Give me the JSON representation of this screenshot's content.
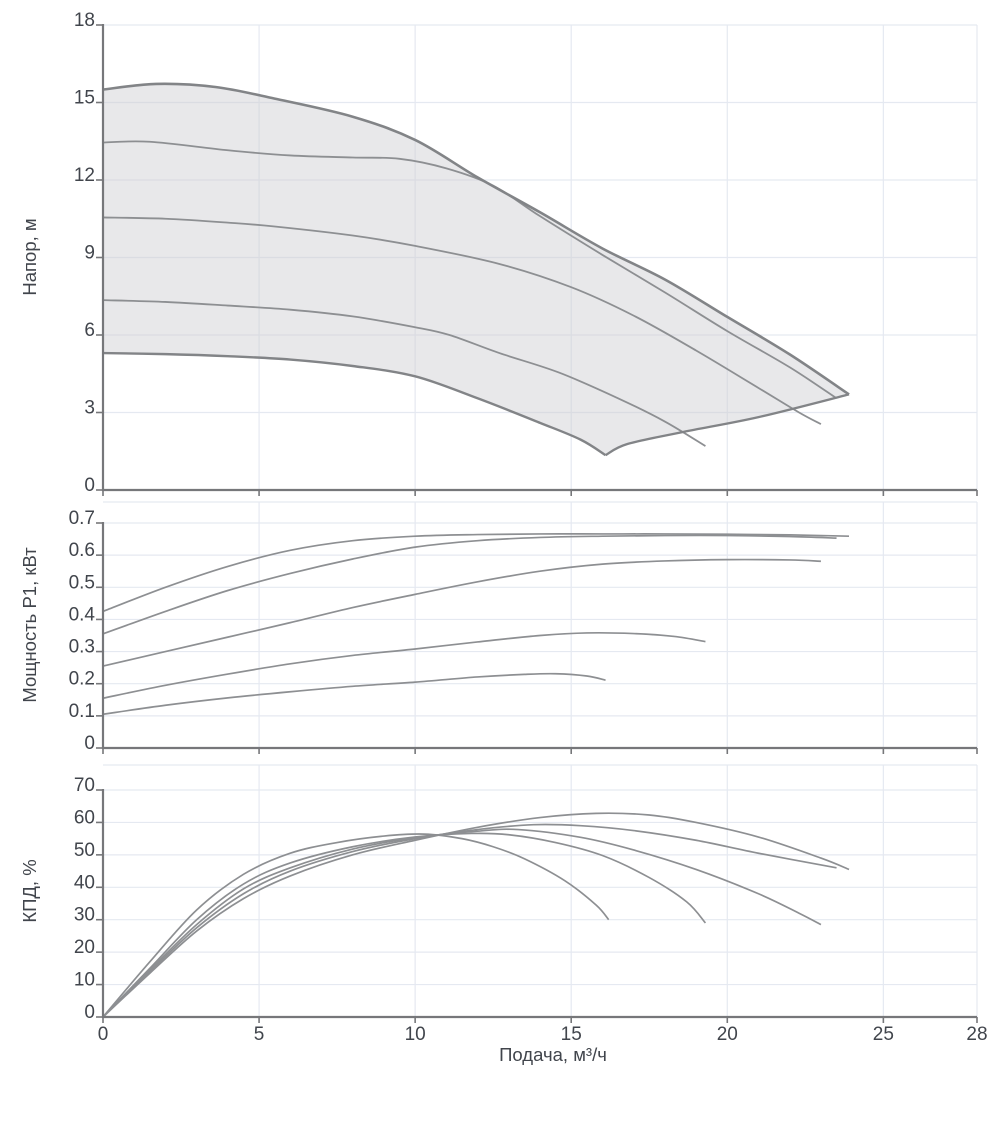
{
  "colors": {
    "background": "#ffffff",
    "grid": "#e5e9f1",
    "axis": "#76777a",
    "curve": "#8d8f92",
    "curve_bold": "#828487",
    "envelope_fill": "rgba(203,205,208,0.45)",
    "text": "#41454c"
  },
  "x_axis": {
    "label": "Подача, м³/ч",
    "min": 0,
    "max": 28,
    "ticks": [
      0,
      5,
      10,
      15,
      20,
      25,
      28
    ]
  },
  "chart_data": [
    {
      "type": "line",
      "panel": "head",
      "ylabel": "Напор, м",
      "ylim": [
        0,
        18
      ],
      "yticks": [
        0,
        3,
        6,
        9,
        12,
        15,
        18
      ],
      "grid": true,
      "envelope": {
        "right_edge": [
          [
            16.1,
            1.35
          ],
          [
            16.8,
            1.78
          ],
          [
            18.6,
            2.25
          ],
          [
            21,
            2.82
          ],
          [
            23.9,
            3.7
          ]
        ]
      },
      "series": [
        {
          "name": "speed-1",
          "points": [
            [
              0,
              15.5
            ],
            [
              1.7,
              15.72
            ],
            [
              3.6,
              15.6
            ],
            [
              5.5,
              15.15
            ],
            [
              8,
              14.45
            ],
            [
              10,
              13.55
            ],
            [
              12,
              12.1
            ],
            [
              14,
              10.75
            ],
            [
              16,
              9.35
            ],
            [
              18,
              8.15
            ],
            [
              20,
              6.7
            ],
            [
              22,
              5.25
            ],
            [
              23.9,
              3.7
            ]
          ]
        },
        {
          "name": "speed-2",
          "points": [
            [
              0,
              13.45
            ],
            [
              1.5,
              13.48
            ],
            [
              4,
              13.15
            ],
            [
              6,
              12.95
            ],
            [
              8,
              12.87
            ],
            [
              9.5,
              12.82
            ],
            [
              11,
              12.45
            ],
            [
              12.5,
              11.78
            ],
            [
              14,
              10.6
            ],
            [
              16,
              9.1
            ],
            [
              18,
              7.65
            ],
            [
              20,
              6.15
            ],
            [
              22,
              4.75
            ],
            [
              23.5,
              3.55
            ]
          ]
        },
        {
          "name": "speed-3",
          "points": [
            [
              0,
              10.55
            ],
            [
              2,
              10.5
            ],
            [
              4,
              10.35
            ],
            [
              5.5,
              10.2
            ],
            [
              8,
              9.85
            ],
            [
              10,
              9.45
            ],
            [
              12.7,
              8.75
            ],
            [
              15,
              7.85
            ],
            [
              17,
              6.75
            ],
            [
              19,
              5.4
            ],
            [
              21,
              3.95
            ],
            [
              22.3,
              3.0
            ],
            [
              23,
              2.55
            ]
          ]
        },
        {
          "name": "speed-4",
          "points": [
            [
              0,
              7.35
            ],
            [
              2,
              7.28
            ],
            [
              4,
              7.14
            ],
            [
              6,
              6.98
            ],
            [
              8,
              6.72
            ],
            [
              10,
              6.3
            ],
            [
              11.1,
              6.0
            ],
            [
              12.7,
              5.3
            ],
            [
              14.6,
              4.55
            ],
            [
              16.5,
              3.55
            ],
            [
              18,
              2.65
            ],
            [
              19.3,
              1.7
            ]
          ]
        },
        {
          "name": "speed-5",
          "points": [
            [
              0,
              5.3
            ],
            [
              2,
              5.26
            ],
            [
              4,
              5.18
            ],
            [
              6,
              5.05
            ],
            [
              8,
              4.8
            ],
            [
              10,
              4.4
            ],
            [
              12,
              3.55
            ],
            [
              14,
              2.6
            ],
            [
              15.3,
              1.95
            ],
            [
              16.1,
              1.35
            ]
          ]
        }
      ]
    },
    {
      "type": "line",
      "panel": "power",
      "ylabel": "Мощность P1, кВт",
      "ylim": [
        0,
        0.7
      ],
      "yticks": [
        0,
        0.1,
        0.2,
        0.3,
        0.4,
        0.5,
        0.6,
        0.7
      ],
      "grid": true,
      "series": [
        {
          "name": "speed-1",
          "points": [
            [
              0,
              0.425
            ],
            [
              2,
              0.5
            ],
            [
              4,
              0.565
            ],
            [
              6,
              0.615
            ],
            [
              8,
              0.645
            ],
            [
              10,
              0.659
            ],
            [
              12,
              0.664
            ],
            [
              14,
              0.666
            ],
            [
              16,
              0.666
            ],
            [
              18,
              0.666
            ],
            [
              20,
              0.665
            ],
            [
              22,
              0.663
            ],
            [
              23.9,
              0.659
            ]
          ]
        },
        {
          "name": "speed-2",
          "points": [
            [
              0,
              0.355
            ],
            [
              2,
              0.425
            ],
            [
              4,
              0.49
            ],
            [
              6,
              0.543
            ],
            [
              8,
              0.588
            ],
            [
              10,
              0.625
            ],
            [
              12,
              0.645
            ],
            [
              14,
              0.655
            ],
            [
              16,
              0.659
            ],
            [
              18,
              0.661
            ],
            [
              20,
              0.661
            ],
            [
              22,
              0.658
            ],
            [
              23.5,
              0.653
            ]
          ]
        },
        {
          "name": "speed-3",
          "points": [
            [
              0,
              0.255
            ],
            [
              2,
              0.3
            ],
            [
              4,
              0.345
            ],
            [
              6,
              0.39
            ],
            [
              8,
              0.437
            ],
            [
              10,
              0.478
            ],
            [
              12,
              0.517
            ],
            [
              14,
              0.55
            ],
            [
              16,
              0.572
            ],
            [
              18,
              0.582
            ],
            [
              20,
              0.586
            ],
            [
              22,
              0.585
            ],
            [
              23,
              0.581
            ]
          ]
        },
        {
          "name": "speed-4",
          "points": [
            [
              0,
              0.155
            ],
            [
              2,
              0.195
            ],
            [
              4,
              0.23
            ],
            [
              6,
              0.262
            ],
            [
              8,
              0.288
            ],
            [
              10,
              0.308
            ],
            [
              12,
              0.33
            ],
            [
              14,
              0.35
            ],
            [
              15.5,
              0.358
            ],
            [
              17,
              0.356
            ],
            [
              18.3,
              0.347
            ],
            [
              19.3,
              0.331
            ]
          ]
        },
        {
          "name": "speed-5",
          "points": [
            [
              0,
              0.105
            ],
            [
              2,
              0.133
            ],
            [
              4,
              0.156
            ],
            [
              6,
              0.175
            ],
            [
              8,
              0.192
            ],
            [
              10,
              0.205
            ],
            [
              12,
              0.221
            ],
            [
              13.5,
              0.229
            ],
            [
              14.5,
              0.231
            ],
            [
              15.5,
              0.224
            ],
            [
              16.1,
              0.211
            ]
          ]
        }
      ]
    },
    {
      "type": "line",
      "panel": "efficiency",
      "ylabel": "КПД, %",
      "ylim": [
        0,
        70
      ],
      "yticks": [
        0,
        10,
        20,
        30,
        40,
        50,
        60,
        70
      ],
      "grid": true,
      "series": [
        {
          "name": "speed-1",
          "points": [
            [
              0,
              0
            ],
            [
              1.5,
              13.5
            ],
            [
              3,
              26.5
            ],
            [
              4.5,
              36.5
            ],
            [
              6,
              43.5
            ],
            [
              8,
              50
            ],
            [
              10,
              54.5
            ],
            [
              12,
              58.5
            ],
            [
              14,
              61.5
            ],
            [
              15.8,
              62.8
            ],
            [
              17.5,
              62.3
            ],
            [
              19,
              60
            ],
            [
              21,
              55.5
            ],
            [
              23,
              49
            ],
            [
              23.9,
              45.5
            ]
          ]
        },
        {
          "name": "speed-2",
          "points": [
            [
              0,
              0
            ],
            [
              1.5,
              14
            ],
            [
              3,
              27.5
            ],
            [
              4.5,
              38
            ],
            [
              6,
              45
            ],
            [
              8,
              51
            ],
            [
              10,
              55
            ],
            [
              12,
              57.8
            ],
            [
              13.8,
              59.3
            ],
            [
              15.3,
              59
            ],
            [
              17,
              57.5
            ],
            [
              19,
              54.5
            ],
            [
              21,
              50.5
            ],
            [
              23.5,
              46
            ]
          ]
        },
        {
          "name": "speed-3",
          "points": [
            [
              0,
              0
            ],
            [
              1.5,
              14.5
            ],
            [
              3,
              28.5
            ],
            [
              4.5,
              39.5
            ],
            [
              6,
              46
            ],
            [
              8,
              51.8
            ],
            [
              10,
              55.3
            ],
            [
              12,
              57.3
            ],
            [
              13.3,
              57.8
            ],
            [
              15.3,
              55.4
            ],
            [
              17,
              51.5
            ],
            [
              19,
              45.5
            ],
            [
              21,
              38
            ],
            [
              22.3,
              32
            ],
            [
              23,
              28.5
            ]
          ]
        },
        {
          "name": "speed-4",
          "points": [
            [
              0,
              0
            ],
            [
              1.5,
              15
            ],
            [
              3,
              30
            ],
            [
              4.5,
              41
            ],
            [
              6,
              47.5
            ],
            [
              8,
              52.5
            ],
            [
              10,
              55.5
            ],
            [
              11.8,
              56.6
            ],
            [
              13,
              56.2
            ],
            [
              14.5,
              53.8
            ],
            [
              16,
              49.8
            ],
            [
              17.5,
              43
            ],
            [
              18.7,
              35.5
            ],
            [
              19.3,
              29
            ]
          ]
        },
        {
          "name": "speed-5",
          "points": [
            [
              0,
              0
            ],
            [
              1.5,
              17
            ],
            [
              3,
              33
            ],
            [
              4.5,
              44
            ],
            [
              6,
              50.5
            ],
            [
              7.5,
              53.8
            ],
            [
              9,
              55.8
            ],
            [
              10.3,
              56.4
            ],
            [
              11.5,
              55
            ],
            [
              12.5,
              52.5
            ],
            [
              13.5,
              48.8
            ],
            [
              14.8,
              42
            ],
            [
              15.8,
              34.5
            ],
            [
              16.2,
              30
            ]
          ]
        }
      ]
    }
  ]
}
